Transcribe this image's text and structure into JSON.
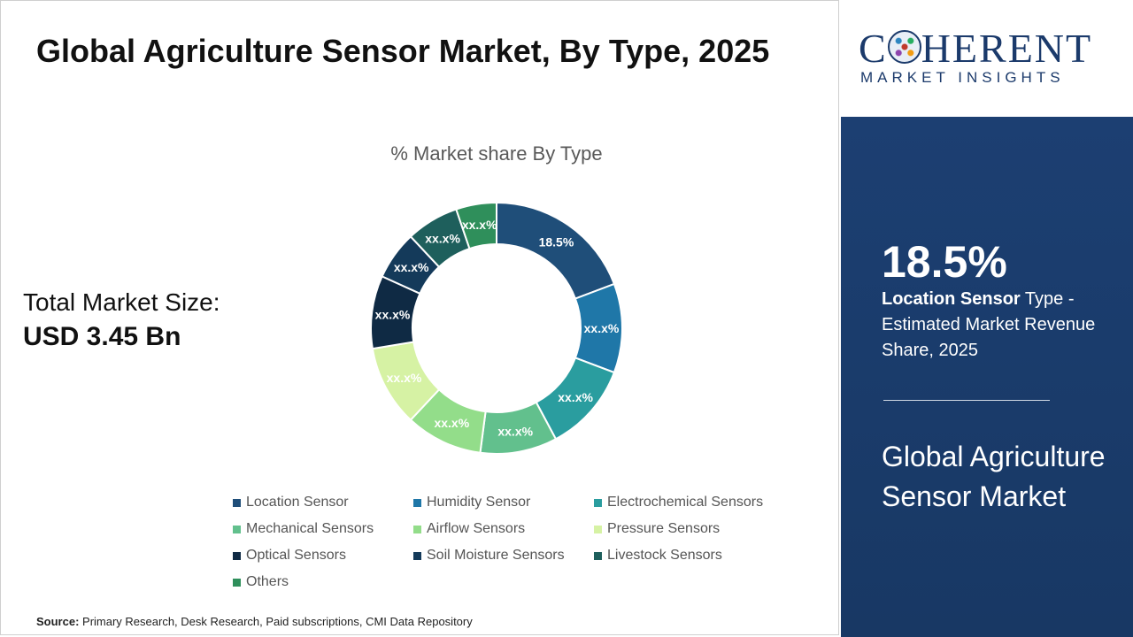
{
  "title": "Global Agriculture Sensor Market, By Type, 2025",
  "total_market": {
    "label": "Total Market Size:",
    "value": "USD 3.45 Bn"
  },
  "source": {
    "label": "Source:",
    "text": "Primary Research, Desk Research, Paid subscriptions, CMI Data Repository"
  },
  "logo": {
    "main_before": "C",
    "main_after": "HERENT",
    "sub": "MARKET INSIGHTS"
  },
  "highlight": {
    "value": "18.5%",
    "segment": "Location Sensor",
    "text_rest": " Type - Estimated Market Revenue Share, 2025",
    "market_name": "Global Agriculture Sensor Market"
  },
  "chart_data": {
    "type": "pie",
    "donut": true,
    "title": "% Market share By Type",
    "legend_position": "bottom",
    "slices": [
      {
        "name": "Location Sensor",
        "value": 18.5,
        "label": "18.5%",
        "color": "#1f4e79"
      },
      {
        "name": "Humidity Sensor",
        "value": 11.0,
        "label": "xx.x%",
        "color": "#1f77a8"
      },
      {
        "name": "Electrochemical Sensors",
        "value": 11.0,
        "label": "xx.x%",
        "color": "#2a9d9f"
      },
      {
        "name": "Mechanical Sensors",
        "value": 9.5,
        "label": "xx.x%",
        "color": "#62c08d"
      },
      {
        "name": "Airflow Sensors",
        "value": 9.5,
        "label": "xx.x%",
        "color": "#93dd8a"
      },
      {
        "name": "Pressure Sensors",
        "value": 10.0,
        "label": "xx.x%",
        "color": "#d6f2a4"
      },
      {
        "name": "Optical Sensors",
        "value": 9.0,
        "label": "xx.x%",
        "color": "#0f2a44"
      },
      {
        "name": "Soil Moisture Sensors",
        "value": 6.0,
        "label": "xx.x%",
        "color": "#143a5a"
      },
      {
        "name": "Livestock Sensors",
        "value": 6.5,
        "label": "xx.x%",
        "color": "#1e5f5c"
      },
      {
        "name": "Others",
        "value": 5.0,
        "label": "xx.x%",
        "color": "#2f8f5b"
      }
    ]
  }
}
